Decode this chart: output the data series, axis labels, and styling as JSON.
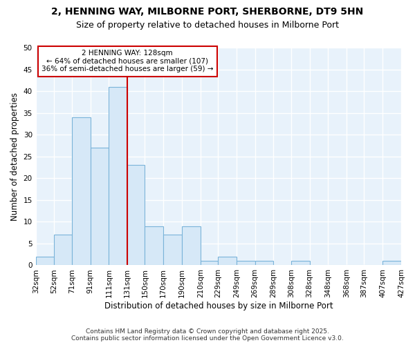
{
  "title": "2, HENNING WAY, MILBORNE PORT, SHERBORNE, DT9 5HN",
  "subtitle": "Size of property relative to detached houses in Milborne Port",
  "xlabel": "Distribution of detached houses by size in Milborne Port",
  "ylabel": "Number of detached properties",
  "bin_edges": [
    32,
    52,
    71,
    91,
    111,
    131,
    150,
    170,
    190,
    210,
    229,
    249,
    269,
    289,
    308,
    328,
    348,
    368,
    387,
    407,
    427
  ],
  "bar_heights": [
    2,
    7,
    34,
    27,
    41,
    23,
    9,
    7,
    9,
    1,
    2,
    1,
    1,
    0,
    1,
    0,
    0,
    0,
    0,
    1
  ],
  "bar_fill_color": "#d6e8f7",
  "bar_edge_color": "#7ab3d9",
  "fig_background_color": "#ffffff",
  "plot_background_color": "#e8f2fb",
  "grid_color": "#ffffff",
  "property_line_x": 131,
  "property_line_color": "#cc0000",
  "annotation_text": "2 HENNING WAY: 128sqm\n← 64% of detached houses are smaller (107)\n36% of semi-detached houses are larger (59) →",
  "annotation_box_edge_color": "#cc0000",
  "annotation_box_fill_color": "#ffffff",
  "ylim": [
    0,
    50
  ],
  "yticks": [
    0,
    5,
    10,
    15,
    20,
    25,
    30,
    35,
    40,
    45,
    50
  ],
  "footer_line1": "Contains HM Land Registry data © Crown copyright and database right 2025.",
  "footer_line2": "Contains public sector information licensed under the Open Government Licence v3.0.",
  "title_fontsize": 10,
  "subtitle_fontsize": 9,
  "axis_label_fontsize": 8.5,
  "tick_fontsize": 7.5,
  "annotation_fontsize": 7.5,
  "footer_fontsize": 6.5
}
